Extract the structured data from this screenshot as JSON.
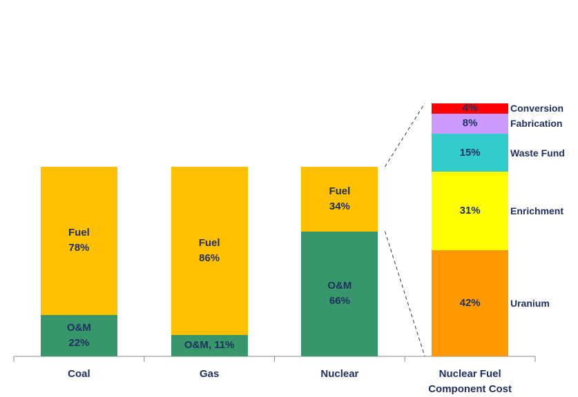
{
  "chart_data": {
    "type": "stacked_bar",
    "categories": [
      "Coal",
      "Gas",
      "Nuclear",
      "Nuclear Fuel Component Cost"
    ],
    "series": [
      {
        "name": "O&M",
        "color": "#37976a",
        "legend": false,
        "values": [
          22,
          11,
          66,
          null
        ],
        "value_labels": [
          "O&M\n22%",
          "O&M, 11%",
          "O&M\n66%",
          null
        ]
      },
      {
        "name": "Fuel",
        "color": "#ffc000",
        "legend": false,
        "values": [
          78,
          86,
          34,
          null
        ],
        "value_labels": [
          "Fuel\n78%",
          "Fuel\n86%",
          "Fuel\n34%",
          null
        ]
      },
      {
        "name": "Uranium",
        "color": "#ff9900",
        "legend": true,
        "values": [
          null,
          null,
          null,
          42
        ],
        "value_labels": [
          null,
          null,
          null,
          "42%"
        ]
      },
      {
        "name": "Enrichment",
        "color": "#ffff00",
        "legend": true,
        "values": [
          null,
          null,
          null,
          31
        ],
        "value_labels": [
          null,
          null,
          null,
          "31%"
        ]
      },
      {
        "name": "Waste Fund",
        "color": "#33cccc",
        "legend": true,
        "values": [
          null,
          null,
          null,
          15
        ],
        "value_labels": [
          null,
          null,
          null,
          "15%"
        ]
      },
      {
        "name": "Fabrication",
        "color": "#cc99ff",
        "legend": true,
        "values": [
          null,
          null,
          null,
          8
        ],
        "value_labels": [
          null,
          null,
          null,
          "8%"
        ]
      },
      {
        "name": "Conversion",
        "color": "#ff0000",
        "legend": true,
        "values": [
          null,
          null,
          null,
          4
        ],
        "value_labels": [
          null,
          null,
          null,
          "4%"
        ]
      }
    ]
  }
}
